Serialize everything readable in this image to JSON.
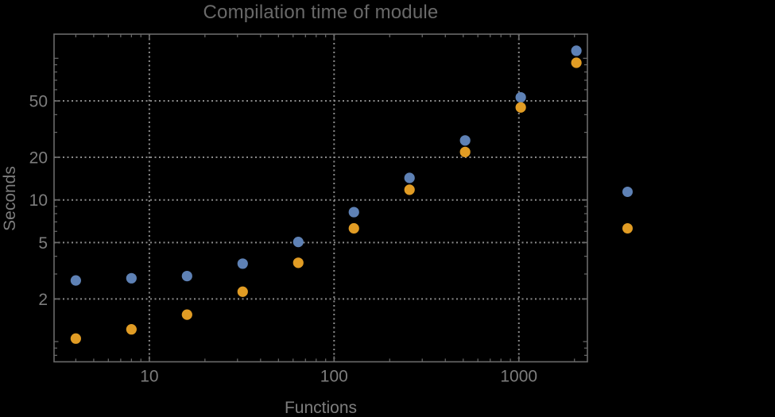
{
  "page": {
    "background": "#000000"
  },
  "chart_data": {
    "type": "scatter",
    "title": "Compilation time of module",
    "xlabel": "Functions",
    "ylabel": "Seconds",
    "xscale": "log",
    "yscale": "log",
    "x": [
      4,
      8,
      16,
      32,
      64,
      128,
      256,
      512,
      1024,
      2048
    ],
    "series": [
      {
        "name": "series-1-blue",
        "color": "#5E81B5",
        "values": [
          2.7,
          2.8,
          2.9,
          3.55,
          5.05,
          8.2,
          14.3,
          26.3,
          53,
          113
        ]
      },
      {
        "name": "series-2-orange",
        "color": "#E19C24",
        "values": [
          1.05,
          1.22,
          1.55,
          2.25,
          3.6,
          6.3,
          11.8,
          21.8,
          45,
          93
        ]
      }
    ],
    "xlim": [
      3.05,
      2350
    ],
    "ylim": [
      0.72,
      148
    ],
    "x_major_ticks": [
      10,
      100,
      1000
    ],
    "x_tick_labels": [
      "10",
      "100",
      "1000"
    ],
    "y_major_ticks": [
      2,
      5,
      10,
      20,
      50
    ],
    "y_tick_labels": [
      "2",
      "5",
      "10",
      "20",
      "50"
    ],
    "grid": {
      "style": "dotted",
      "color": "#8a8a8a",
      "on_major_ticks_only": true
    },
    "frame_color": "#6a6a6a",
    "tick_label_color": "#7d7d7d",
    "title_color": "#696969",
    "background_color": "#000000",
    "legend": {
      "labels_visible": false,
      "markers": [
        {
          "series": "series-1-blue",
          "color": "#5E81B5"
        },
        {
          "series": "series-2-orange",
          "color": "#E19C24"
        }
      ]
    }
  }
}
